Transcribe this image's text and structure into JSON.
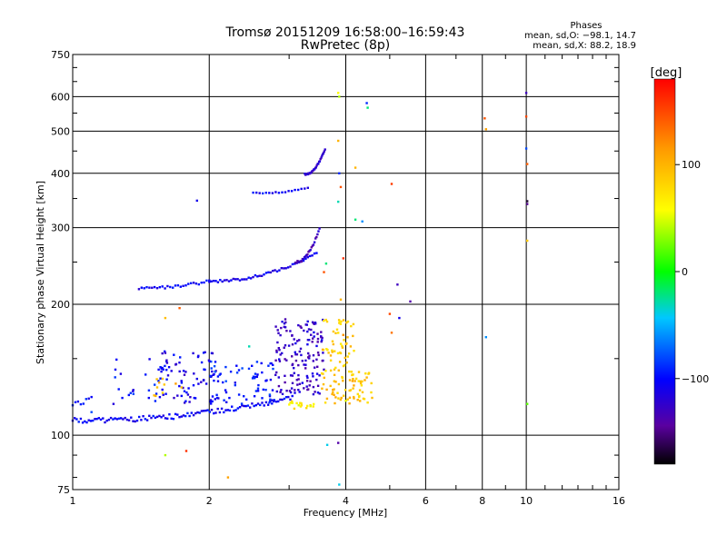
{
  "chart_data": {
    "type": "scatter",
    "title": "Tromsø 20151209 16:58:00–16:59:43",
    "subtitle": "RwPretec (8p)",
    "xlabel": "Frequency [MHz]",
    "ylabel": "Stationary phase Virtual Height [km]",
    "x_scale": "log",
    "y_scale": "log",
    "xlim": [
      1,
      16
    ],
    "ylim": [
      75,
      750
    ],
    "x_ticks": [
      "1",
      "2",
      "4",
      "6",
      "8",
      "10",
      "16"
    ],
    "y_ticks": [
      "750",
      "600",
      "500",
      "400",
      "300",
      "200",
      "100",
      "75"
    ],
    "grid": true,
    "stats": {
      "header": "Phases",
      "line_o": "mean, sd,O: −98.1, 14.7",
      "line_x": "mean, sd,X: 88.2, 18.9"
    },
    "colorbar": {
      "label": "[deg]",
      "range": [
        -180,
        180
      ],
      "tick_labels": [
        "100",
        "0",
        "−100"
      ]
    },
    "traces": [
      {
        "x_range": [
          1.0,
          3.05
        ],
        "h_range": [
          108,
          122
        ],
        "phase": -105,
        "n": 110
      },
      {
        "x_range": [
          1.0,
          1.1
        ],
        "h_range": [
          118,
          122
        ],
        "phase": -100,
        "n": 8
      },
      {
        "x_range": [
          1.4,
          2.0
        ],
        "h_range": [
          218,
          226
        ],
        "phase": -105,
        "n": 28
      },
      {
        "x_range": [
          2.0,
          3.45
        ],
        "h_range": [
          226,
          262
        ],
        "phase": -110,
        "n": 50
      },
      {
        "x_range": [
          3.1,
          3.5
        ],
        "h_range": [
          250,
          298
        ],
        "phase": -130,
        "n": 25
      },
      {
        "x_range": [
          3.25,
          3.6
        ],
        "h_range": [
          398,
          455
        ],
        "phase": -125,
        "n": 28
      },
      {
        "x_range": [
          2.5,
          3.3
        ],
        "h_range": [
          360,
          370
        ],
        "phase": -100,
        "n": 18
      }
    ],
    "clusters": [
      {
        "x_range": [
          1.2,
          1.7
        ],
        "h_range": [
          118,
          150
        ],
        "phase": -100,
        "n": 30
      },
      {
        "x_range": [
          1.55,
          2.1
        ],
        "h_range": [
          118,
          158
        ],
        "phase": -110,
        "n": 70
      },
      {
        "x_range": [
          2.0,
          2.8
        ],
        "h_range": [
          118,
          148
        ],
        "phase": -95,
        "n": 70
      },
      {
        "x_range": [
          1.45,
          1.8
        ],
        "h_range": [
          123,
          136
        ],
        "phase": 95,
        "n": 10
      },
      {
        "x_range": [
          2.8,
          3.6
        ],
        "h_range": [
          124,
          185
        ],
        "phase": -125,
        "n": 150
      },
      {
        "x_range": [
          3.5,
          4.6
        ],
        "h_range": [
          118,
          140
        ],
        "phase": 90,
        "n": 70
      },
      {
        "x_range": [
          3.55,
          4.2
        ],
        "h_range": [
          140,
          185
        ],
        "phase": 85,
        "n": 55
      },
      {
        "x_range": [
          3.0,
          3.4
        ],
        "h_range": [
          115,
          120
        ],
        "phase": 65,
        "n": 18
      }
    ],
    "points": [
      {
        "x": 1.88,
        "y": 346,
        "phase": -110
      },
      {
        "x": 3.85,
        "y": 612,
        "phase": 60
      },
      {
        "x": 3.87,
        "y": 600,
        "phase": 40
      },
      {
        "x": 4.45,
        "y": 580,
        "phase": -90
      },
      {
        "x": 4.47,
        "y": 566,
        "phase": -20
      },
      {
        "x": 3.85,
        "y": 475,
        "phase": 100
      },
      {
        "x": 3.87,
        "y": 400,
        "phase": -90
      },
      {
        "x": 3.9,
        "y": 372,
        "phase": 145
      },
      {
        "x": 4.2,
        "y": 412,
        "phase": 100
      },
      {
        "x": 4.2,
        "y": 313,
        "phase": -20
      },
      {
        "x": 4.35,
        "y": 310,
        "phase": -60
      },
      {
        "x": 3.85,
        "y": 344,
        "phase": -30
      },
      {
        "x": 3.58,
        "y": 237,
        "phase": 145
      },
      {
        "x": 3.95,
        "y": 255,
        "phase": 160
      },
      {
        "x": 3.62,
        "y": 248,
        "phase": -20
      },
      {
        "x": 5.05,
        "y": 378,
        "phase": 155
      },
      {
        "x": 5.2,
        "y": 222,
        "phase": -130
      },
      {
        "x": 5.55,
        "y": 203,
        "phase": -140
      },
      {
        "x": 5.0,
        "y": 190,
        "phase": 150
      },
      {
        "x": 5.05,
        "y": 172,
        "phase": 130
      },
      {
        "x": 5.25,
        "y": 186,
        "phase": -110
      },
      {
        "x": 1.6,
        "y": 186,
        "phase": 95
      },
      {
        "x": 1.6,
        "y": 90,
        "phase": 40
      },
      {
        "x": 1.72,
        "y": 196,
        "phase": 140
      },
      {
        "x": 1.78,
        "y": 92,
        "phase": 160
      },
      {
        "x": 2.2,
        "y": 80,
        "phase": 110
      },
      {
        "x": 2.45,
        "y": 160,
        "phase": -30
      },
      {
        "x": 3.64,
        "y": 95,
        "phase": -40
      },
      {
        "x": 3.85,
        "y": 96,
        "phase": -140
      },
      {
        "x": 3.87,
        "y": 77,
        "phase": -40
      },
      {
        "x": 8.1,
        "y": 535,
        "phase": 145
      },
      {
        "x": 8.15,
        "y": 505,
        "phase": 110
      },
      {
        "x": 8.15,
        "y": 168,
        "phase": -60
      },
      {
        "x": 10.0,
        "y": 612,
        "phase": -130
      },
      {
        "x": 10.0,
        "y": 540,
        "phase": 150
      },
      {
        "x": 10.0,
        "y": 456,
        "phase": -80
      },
      {
        "x": 10.05,
        "y": 420,
        "phase": 140
      },
      {
        "x": 10.05,
        "y": 345,
        "phase": -170
      },
      {
        "x": 10.05,
        "y": 340,
        "phase": -150
      },
      {
        "x": 10.05,
        "y": 280,
        "phase": 90
      },
      {
        "x": 10.05,
        "y": 118,
        "phase": 20
      },
      {
        "x": 1.1,
        "y": 113,
        "phase": -80
      },
      {
        "x": 3.9,
        "y": 205,
        "phase": 100
      },
      {
        "x": 3.95,
        "y": 170,
        "phase": 120
      },
      {
        "x": 4.1,
        "y": 160,
        "phase": 100
      },
      {
        "x": 4.0,
        "y": 120,
        "phase": 50
      }
    ],
    "colors": {
      "grid": "#000000",
      "background": "#ffffff"
    }
  }
}
